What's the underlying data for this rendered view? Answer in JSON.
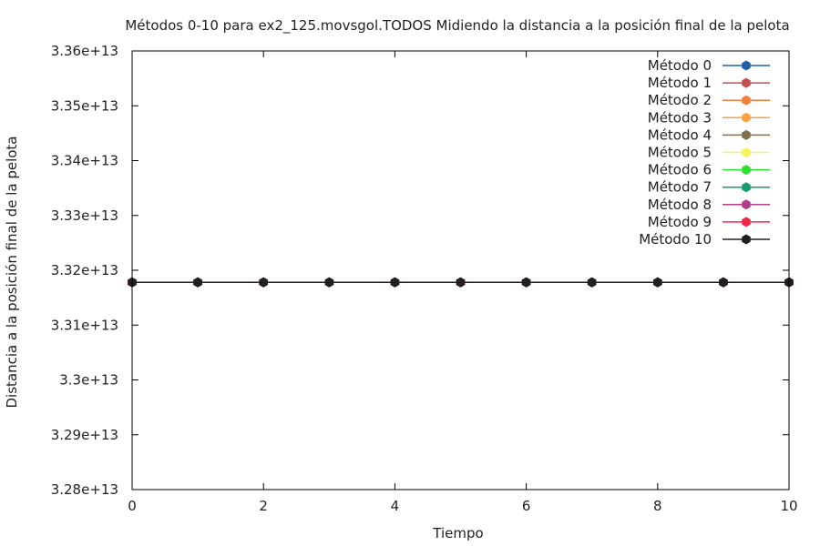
{
  "chart_data": {
    "type": "line",
    "title": "Métodos 0-10 para ex2_125.movsgol.TODOS Midiendo la distancia a la posición final de la pelota",
    "xlabel": "Tiempo",
    "ylabel": "Distancia a la posición final de la pelota",
    "xlim": [
      0,
      10
    ],
    "ylim": [
      32800000000000.0,
      33600000000000.0
    ],
    "xticks": [
      0,
      2,
      4,
      6,
      8,
      10
    ],
    "xtick_labels": [
      "0",
      "2",
      "4",
      "6",
      "8",
      "10"
    ],
    "yticks": [
      32800000000000.0,
      32900000000000.0,
      33000000000000.0,
      33100000000000.0,
      33200000000000.0,
      33300000000000.0,
      33400000000000.0,
      33500000000000.0,
      33600000000000.0
    ],
    "ytick_labels": [
      "3.28e+13",
      "3.29e+13",
      "3.3e+13",
      "3.31e+13",
      "3.32e+13",
      "3.33e+13",
      "3.34e+13",
      "3.35e+13",
      "3.36e+13"
    ],
    "grid": false,
    "legend_position": "top-right",
    "x": [
      0,
      1,
      2,
      3,
      4,
      5,
      6,
      7,
      8,
      9,
      10
    ],
    "series": [
      {
        "name": "Método 0",
        "color": "#1f5fa8",
        "values": [
          33178000000000.0,
          33178000000000.0,
          33178000000000.0,
          33178000000000.0,
          33178000000000.0,
          33178000000000.0,
          33178000000000.0,
          33178000000000.0,
          33178000000000.0,
          33178000000000.0,
          33178000000000.0
        ]
      },
      {
        "name": "Método 1",
        "color": "#c0504d",
        "values": [
          33178000000000.0,
          33178000000000.0,
          33178000000000.0,
          33178000000000.0,
          33178000000000.0,
          33178000000000.0,
          33178000000000.0,
          33178000000000.0,
          33178000000000.0,
          33178000000000.0,
          33178000000000.0
        ]
      },
      {
        "name": "Método 2",
        "color": "#f07f3c",
        "values": [
          33178000000000.0,
          33178000000000.0,
          33178000000000.0,
          33178000000000.0,
          33178000000000.0,
          33178000000000.0,
          33178000000000.0,
          33178000000000.0,
          33178000000000.0,
          33178000000000.0,
          33178000000000.0
        ]
      },
      {
        "name": "Método 3",
        "color": "#f9a13f",
        "values": [
          33178000000000.0,
          33178000000000.0,
          33178000000000.0,
          33178000000000.0,
          33178000000000.0,
          33178000000000.0,
          33178000000000.0,
          33178000000000.0,
          33178000000000.0,
          33178000000000.0,
          33178000000000.0
        ]
      },
      {
        "name": "Método 4",
        "color": "#7f6f50",
        "values": [
          33178000000000.0,
          33178000000000.0,
          33178000000000.0,
          33178000000000.0,
          33178000000000.0,
          33178000000000.0,
          33178000000000.0,
          33178000000000.0,
          33178000000000.0,
          33178000000000.0,
          33178000000000.0
        ]
      },
      {
        "name": "Método 5",
        "color": "#f5f55a",
        "values": [
          33178000000000.0,
          33178000000000.0,
          33178000000000.0,
          33178000000000.0,
          33178000000000.0,
          33178000000000.0,
          33178000000000.0,
          33178000000000.0,
          33178000000000.0,
          33178000000000.0,
          33178000000000.0
        ]
      },
      {
        "name": "Método 6",
        "color": "#2de02d",
        "values": [
          33178000000000.0,
          33178000000000.0,
          33178000000000.0,
          33178000000000.0,
          33178000000000.0,
          33178000000000.0,
          33178000000000.0,
          33178000000000.0,
          33178000000000.0,
          33178000000000.0,
          33178000000000.0
        ]
      },
      {
        "name": "Método 7",
        "color": "#179c6e",
        "values": [
          33178000000000.0,
          33178000000000.0,
          33178000000000.0,
          33178000000000.0,
          33178000000000.0,
          33178000000000.0,
          33178000000000.0,
          33178000000000.0,
          33178000000000.0,
          33178000000000.0,
          33178000000000.0
        ]
      },
      {
        "name": "Método 8",
        "color": "#b23e8e",
        "values": [
          33178000000000.0,
          33178000000000.0,
          33178000000000.0,
          33178000000000.0,
          33178000000000.0,
          33178000000000.0,
          33178000000000.0,
          33178000000000.0,
          33178000000000.0,
          33178000000000.0,
          33178000000000.0
        ]
      },
      {
        "name": "Método 9",
        "color": "#f02848",
        "values": [
          33178000000000.0,
          33178000000000.0,
          33178000000000.0,
          33178000000000.0,
          33178000000000.0,
          33178000000000.0,
          33178000000000.0,
          33178000000000.0,
          33178000000000.0,
          33178000000000.0,
          33178000000000.0
        ]
      },
      {
        "name": "Método 10",
        "color": "#202020",
        "values": [
          33178000000000.0,
          33178000000000.0,
          33178000000000.0,
          33178000000000.0,
          33178000000000.0,
          33178000000000.0,
          33178000000000.0,
          33178000000000.0,
          33178000000000.0,
          33178000000000.0,
          33178000000000.0
        ]
      }
    ]
  }
}
